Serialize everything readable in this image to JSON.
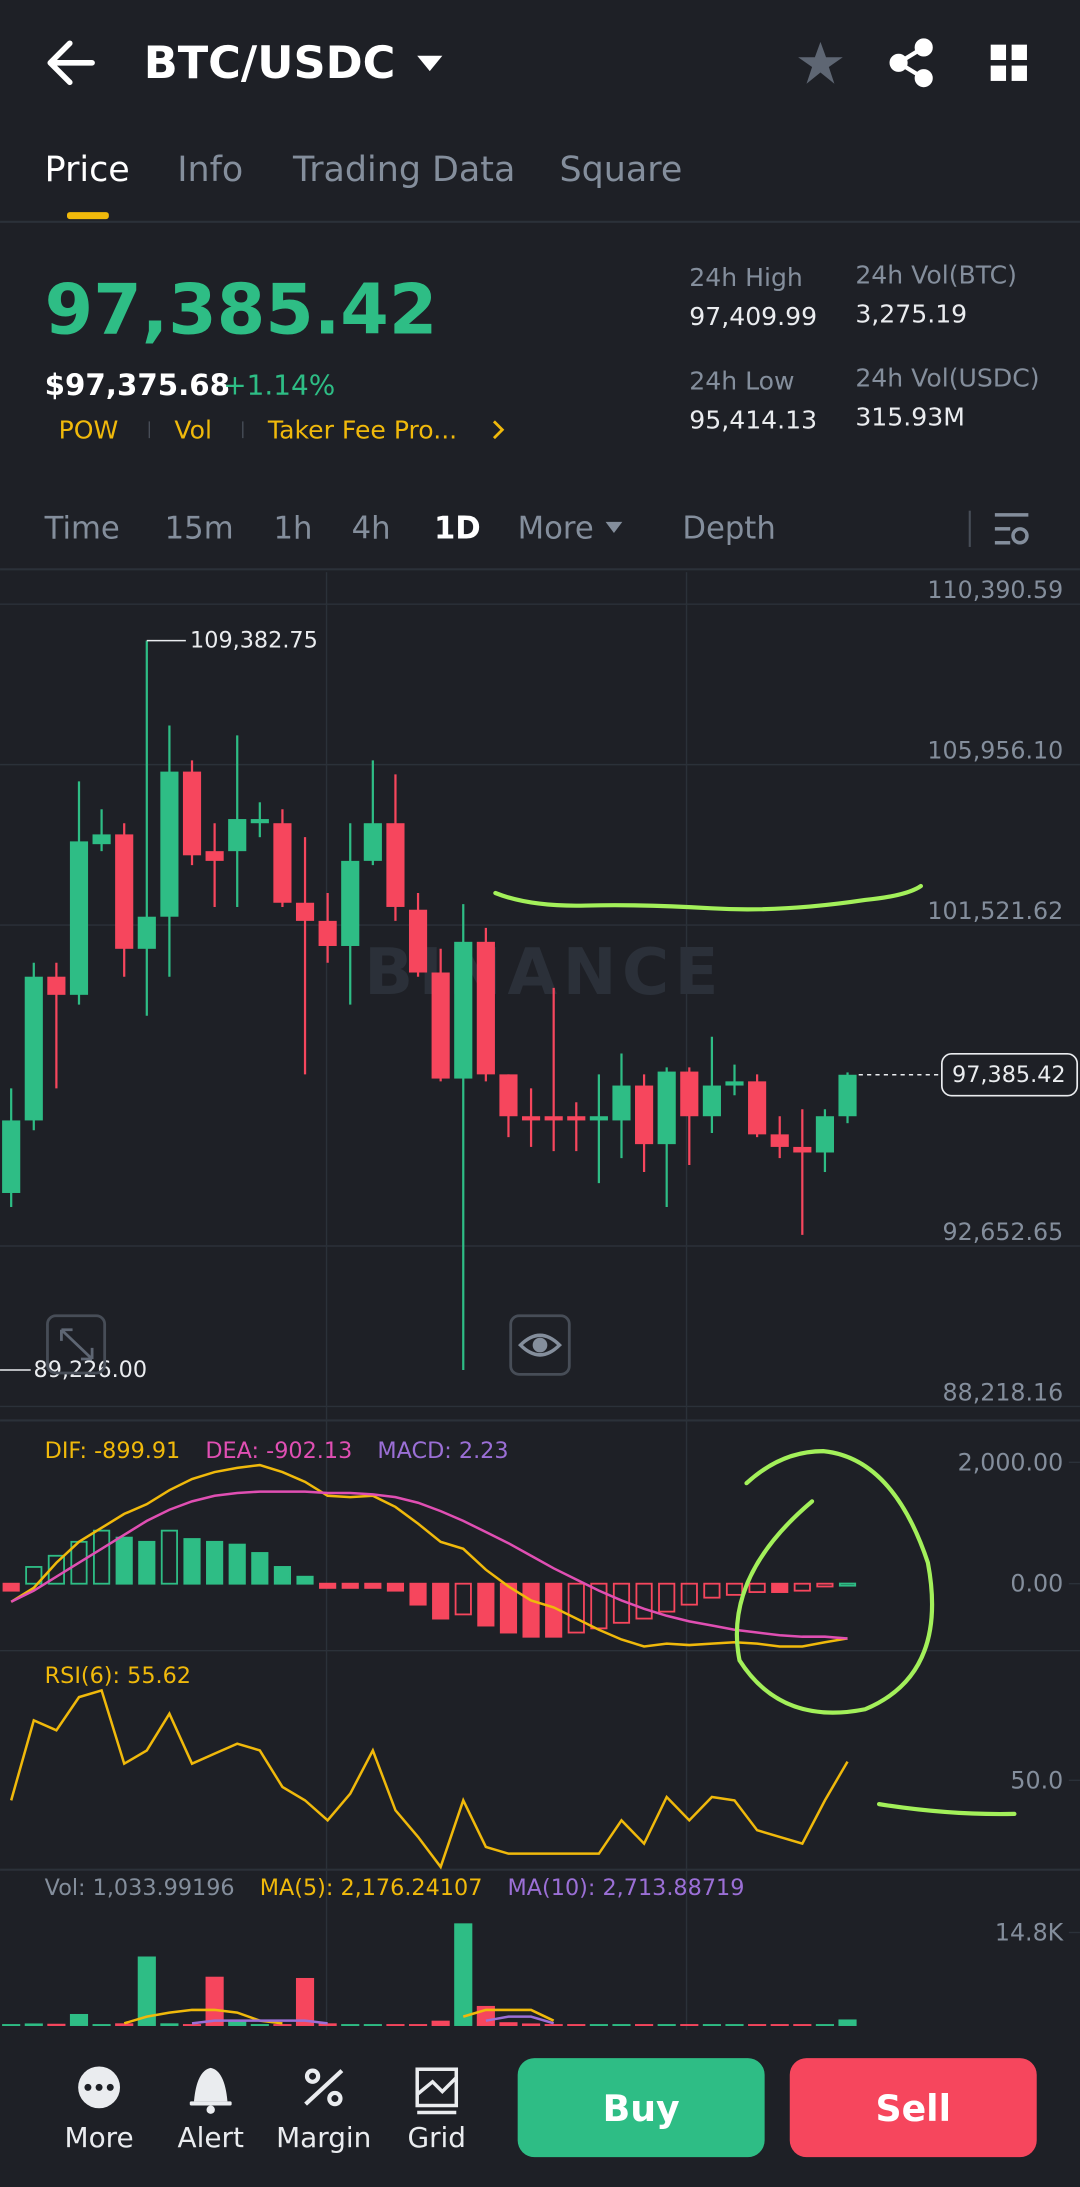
{
  "header": {
    "title": "BTC/USDC",
    "tabs": [
      "Price",
      "Info",
      "Trading Data",
      "Square"
    ]
  },
  "ticker": {
    "price": "97,385.42",
    "fiat_price": "$97,375.68",
    "change": "+1.14%",
    "tags": [
      "POW",
      "Vol",
      "Taker Fee Pro..."
    ],
    "stats": [
      {
        "label": "24h High",
        "value": "97,409.99"
      },
      {
        "label": "24h Vol(BTC)",
        "value": "3,275.19"
      },
      {
        "label": "24h Low",
        "value": "95,414.13"
      },
      {
        "label": "24h Vol(USDC)",
        "value": "315.93M"
      }
    ]
  },
  "intervals": [
    "Time",
    "15m",
    "1h",
    "4h",
    "1D",
    "More",
    "Depth"
  ],
  "watermark": "BINANCE",
  "chart_data": [
    {
      "type": "candlestick",
      "open": [
        94118,
        96123,
        100095,
        99594,
        103758,
        104028,
        100866,
        101753,
        105763,
        103565,
        103565,
        104337,
        104337,
        102139,
        101638,
        100944,
        103296,
        104337,
        101946,
        100211,
        97280,
        101059,
        97396,
        96239,
        96239,
        96239,
        96123,
        96123,
        97087,
        95468,
        97473,
        96239,
        97087,
        97203,
        95738,
        95391,
        95237,
        96239
      ],
      "high": [
        97010,
        100481,
        100481,
        105494,
        104722,
        104337,
        109382.75,
        107036,
        106072,
        104337,
        106766,
        104915,
        104722,
        103951,
        102409,
        104337,
        106072,
        105686,
        102409,
        100866,
        102100,
        101445,
        97396,
        97010,
        99787,
        96625,
        97396,
        97974,
        97396,
        97589,
        97589,
        98437,
        97666,
        97396,
        96239,
        96432,
        96432,
        97450
      ],
      "low": [
        93732,
        95853,
        97010,
        99324,
        103565,
        100095,
        99015,
        100095,
        103180,
        102023,
        102023,
        103951,
        102023,
        97396,
        100481,
        99324,
        103180,
        101638,
        100095,
        97203,
        89226,
        97203,
        95661,
        95391,
        95275,
        95275,
        94389,
        95082,
        94697,
        93732,
        94890,
        95777,
        96818,
        95661,
        95082,
        92962,
        94697,
        96047
      ],
      "close": [
        96123,
        100095,
        99594,
        103835,
        104028,
        100866,
        101753,
        105763,
        103450,
        103296,
        104452,
        104452,
        102139,
        101638,
        100944,
        103296,
        104337,
        102023,
        100211,
        97280,
        101059,
        97396,
        96239,
        96123,
        96123,
        96123,
        96239,
        97087,
        95468,
        97473,
        96239,
        97087,
        97203,
        95738,
        95391,
        95237,
        96239,
        97385.42
      ],
      "up_color": "#2ebd85",
      "down_color": "#f6465d",
      "ylim": [
        88218.16,
        110390.59
      ],
      "yticks": [
        {
          "value": 110390.59,
          "label": "110,390.59"
        },
        {
          "value": 105956.1,
          "label": "105,956.10"
        },
        {
          "value": 101521.62,
          "label": "101,521.62"
        },
        {
          "value": 92652.65,
          "label": "92,652.65"
        },
        {
          "value": 88218.16,
          "label": "88,218.16"
        }
      ],
      "annotations": [
        {
          "value": 109382.75,
          "label": "109,382.75"
        },
        {
          "value": 89226.0,
          "label": "89,226.00"
        }
      ],
      "last_price": {
        "value": 97385.42,
        "label": "97,385.42"
      }
    },
    {
      "type": "macd",
      "series": [
        {
          "label": "DIF: -899.91",
          "color": "#f0b90b",
          "values": [
            -299,
            -69,
            345,
            690,
            920,
            1149,
            1310,
            1540,
            1724,
            1839,
            1908,
            1954,
            1839,
            1678,
            1448,
            1425,
            1448,
            1264,
            989,
            690,
            575,
            230,
            -46,
            -276,
            -391,
            -575,
            -759,
            -920,
            -1034,
            -989,
            -1011,
            -989,
            -966,
            -989,
            -1034,
            -1034,
            -966,
            -899.91
          ]
        },
        {
          "label": "DEA: -902.13",
          "color": "#e04fb3",
          "values": [
            -299,
            -115,
            115,
            345,
            575,
            805,
            1034,
            1218,
            1356,
            1448,
            1494,
            1517,
            1517,
            1517,
            1494,
            1494,
            1471,
            1425,
            1333,
            1195,
            1034,
            851,
            667,
            460,
            253,
            69,
            -115,
            -276,
            -414,
            -529,
            -621,
            -690,
            -759,
            -805,
            -851,
            -874,
            -874,
            -902.13
          ]
        }
      ],
      "histogram": {
        "label": "MACD: 2.23",
        "color": "#9b6fd6",
        "values": [
          -115,
          276,
          460,
          690,
          874,
          759,
          690,
          874,
          736,
          690,
          644,
          506,
          276,
          115,
          -69,
          -69,
          -69,
          -115,
          -345,
          -575,
          -506,
          -690,
          -805,
          -874,
          -874,
          -805,
          -736,
          -644,
          -575,
          -460,
          -345,
          -230,
          -184,
          -138,
          -138,
          -115,
          -46,
          2.23
        ]
      },
      "up_color": "#2ebd85",
      "down_color": "#f6465d",
      "ylim": [
        -1080,
        2529
      ],
      "yticks": [
        {
          "value": 2000,
          "label": "2,000.00"
        },
        {
          "value": 0,
          "label": "0.00"
        }
      ]
    },
    {
      "type": "rsi",
      "series": [
        {
          "label": "RSI(6): 55.62",
          "color": "#f0b90b",
          "values": [
            44,
            68,
            65,
            75,
            77,
            55,
            59,
            70,
            55,
            58,
            61,
            59,
            48,
            44,
            38,
            46,
            59,
            41,
            33,
            24,
            44,
            30,
            28,
            28,
            28,
            28,
            28,
            38,
            31,
            45,
            38,
            45,
            44,
            35,
            33,
            31,
            44,
            55.62
          ]
        }
      ],
      "ylim": [
        24,
        86
      ],
      "yticks": [
        {
          "value": 50,
          "label": "50.0"
        }
      ]
    },
    {
      "type": "volume",
      "bars": {
        "label": "Vol: 1,033.99196",
        "color": "#848e9c",
        "values": [
          300,
          400,
          350,
          1900,
          300,
          420,
          11000,
          420,
          300,
          7800,
          1000,
          300,
          300,
          7600,
          420,
          300,
          300,
          300,
          300,
          840,
          16250,
          3170,
          600,
          400,
          300,
          300,
          300,
          300,
          300,
          300,
          300,
          300,
          300,
          300,
          300,
          300,
          300,
          1033.99196
        ]
      },
      "series": [
        {
          "label": "MA(5): 2,176.24107",
          "color": "#f0b90b",
          "values": [
            null,
            null,
            null,
            null,
            null,
            420,
            1480,
            2110,
            2530,
            2530,
            2110,
            840,
            420,
            null,
            null,
            null,
            null,
            null,
            null,
            null,
            1480,
            2530,
            2530,
            2530,
            840,
            null,
            null,
            null,
            null,
            null,
            null,
            null,
            null,
            null,
            null,
            null,
            null,
            null
          ]
        },
        {
          "label": "MA(10): 2,713.88719",
          "color": "#9b6fd6",
          "values": [
            null,
            null,
            null,
            null,
            null,
            null,
            null,
            null,
            420,
            840,
            840,
            840,
            840,
            840,
            420,
            null,
            null,
            null,
            null,
            null,
            null,
            840,
            1480,
            1480,
            420,
            null,
            null,
            null,
            null,
            null,
            null,
            null,
            null,
            null,
            null,
            null,
            null,
            null
          ]
        }
      ],
      "ylim": [
        0,
        14800
      ],
      "yticks": [
        {
          "value": 14800,
          "label": "14.8K"
        }
      ]
    }
  ],
  "toolbar": [
    "More",
    "Alert",
    "Margin",
    "Grid"
  ],
  "actions": [
    "Buy",
    "Sell"
  ]
}
